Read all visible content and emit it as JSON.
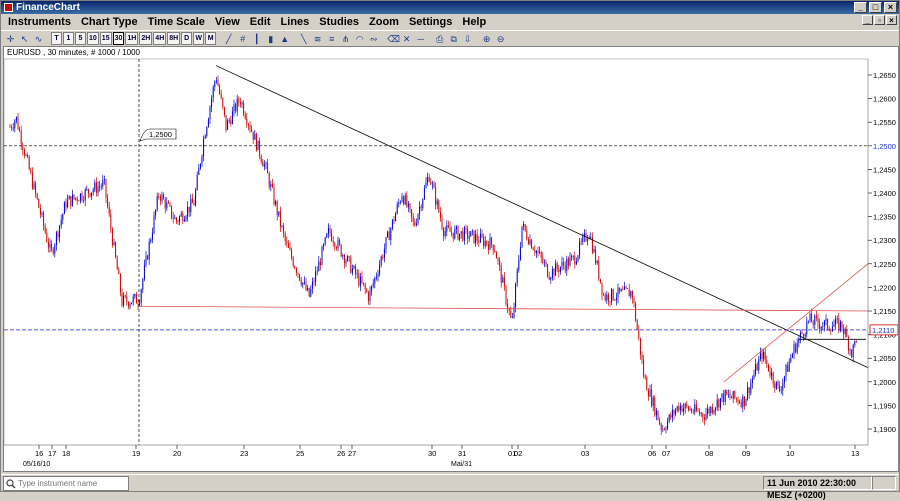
{
  "window": {
    "title": "FinanceChart"
  },
  "menu": [
    "Instruments",
    "Chart Type",
    "Time Scale",
    "View",
    "Edit",
    "Lines",
    "Studies",
    "Zoom",
    "Settings",
    "Help"
  ],
  "toolbar": {
    "timeframes": [
      "T",
      "1",
      "5",
      "10",
      "15",
      "30",
      "1H",
      "2H",
      "4H",
      "8H",
      "D",
      "W",
      "M"
    ],
    "active_timeframe": "30"
  },
  "chart": {
    "label": "EURUSD , 30 minutes, # 1000 / 1000",
    "annotation": "1,2500",
    "current_price": "1,2110",
    "price_ticks": [
      "1,2650",
      "1,2600",
      "1,2550",
      "1,2500",
      "1,2450",
      "1,2400",
      "1,2350",
      "1,2300",
      "1,2250",
      "1,2200",
      "1,2150",
      "1,2100",
      "1,2050",
      "1,2000",
      "1,1950",
      "1,1900"
    ],
    "highlighted_tick": "1,2500",
    "date_ticks": [
      "16",
      "17",
      "18",
      "19",
      "20",
      "23",
      "25",
      "26",
      "27",
      "30",
      "31",
      "01",
      "02",
      "03",
      "06",
      "07",
      "08",
      "09",
      "10",
      "13"
    ],
    "date_sub_labels": [
      "05/16/10",
      "Mai/31"
    ]
  },
  "status": {
    "search_placeholder": "Type instrument name",
    "datetime": "11 Jun 2010 22:30:00  MESZ (+0200)"
  },
  "colors": {
    "candle_up": "#0000cc",
    "candle_down": "#cc0000",
    "trendline": "#000000",
    "support": "#e05050",
    "price_line": "#2020d0"
  }
}
